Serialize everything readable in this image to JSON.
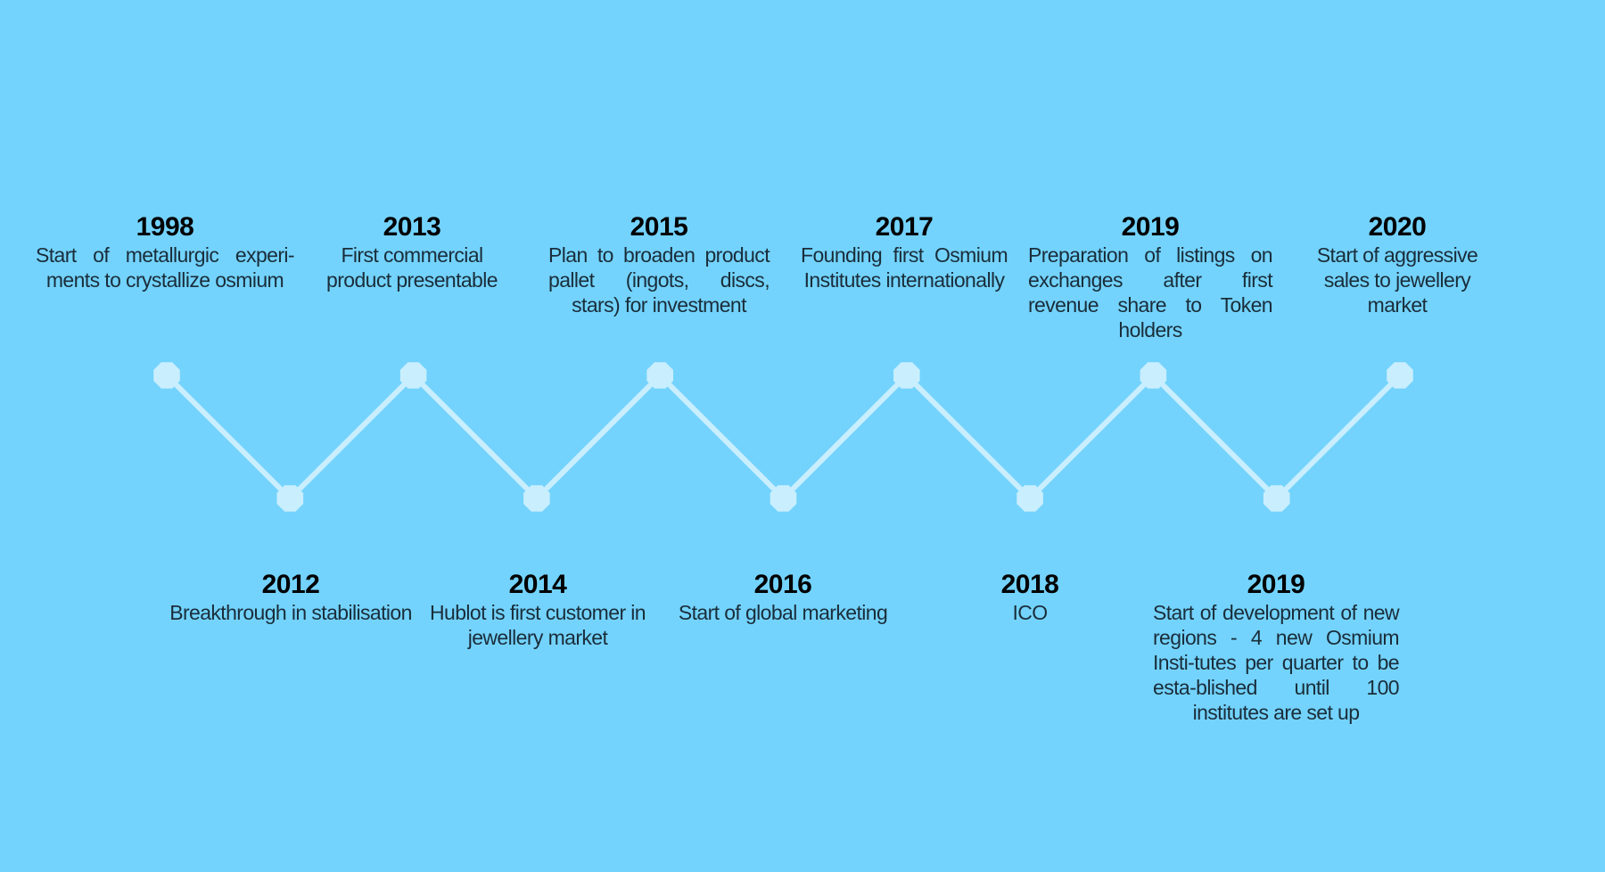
{
  "colors": {
    "background": "#73d3fd",
    "line": "#c9eefe",
    "node": "#c9eefe"
  },
  "events": [
    {
      "year": "1998",
      "description": "Start of metallurgic experi-ments to crystallize osmium",
      "position": "top"
    },
    {
      "year": "2012",
      "description": "Breakthrough in stabilisation",
      "position": "bottom"
    },
    {
      "year": "2013",
      "description": "First commercial product presentable",
      "position": "top"
    },
    {
      "year": "2014",
      "description": "Hublot is first customer in jewellery market",
      "position": "bottom"
    },
    {
      "year": "2015",
      "description": "Plan to broaden product pallet (ingots, discs, stars) for investment",
      "position": "top"
    },
    {
      "year": "2016",
      "description": "Start of global marketing",
      "position": "bottom"
    },
    {
      "year": "2017",
      "description": "Founding first Osmium Institutes internationally",
      "position": "top"
    },
    {
      "year": "2018",
      "description": "ICO",
      "position": "bottom"
    },
    {
      "year": "2019",
      "description": "Preparation of listings on exchanges after first revenue share to Token holders",
      "position": "top"
    },
    {
      "year": "2019",
      "description": "Start of development of new regions - 4 new Osmium Insti-tutes per quarter to be esta-blished until 100 institutes are set up",
      "position": "bottom"
    },
    {
      "year": "2020",
      "description": "Start of aggressive sales to jewellery market",
      "position": "top"
    }
  ]
}
